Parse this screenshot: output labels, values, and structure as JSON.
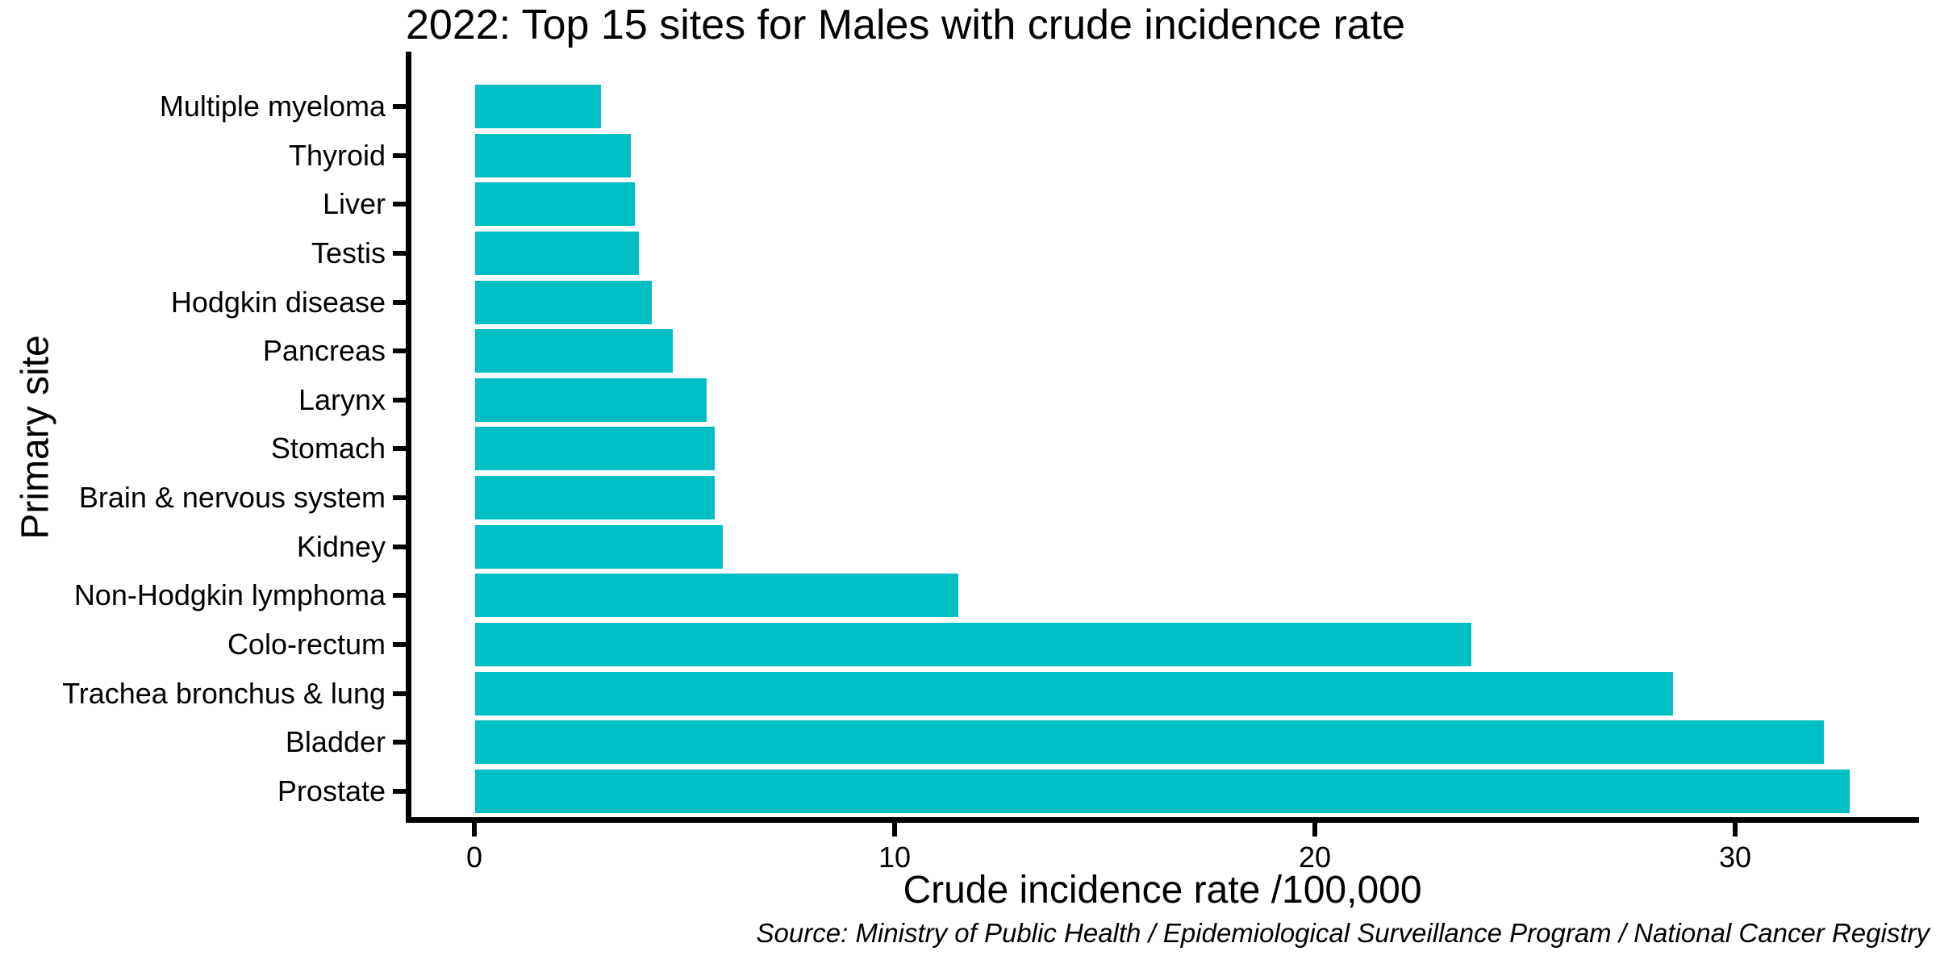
{
  "page": {
    "background": "#ffffff"
  },
  "chart_data": {
    "type": "bar",
    "orientation": "horizontal",
    "title": "2022: Top 15 sites for Males with crude incidence rate",
    "xlabel": "Crude incidence rate /100,000",
    "ylabel": "Primary site",
    "source_note": "Source: Ministry of Public Health / Epidemiological Surveillance Program / National Cancer Registry",
    "categories": [
      "Multiple myeloma",
      "Thyroid",
      "Liver",
      "Testis",
      "Hodgkin disease",
      "Pancreas",
      "Larynx",
      "Stomach",
      "Brain & nervous system",
      "Kidney",
      "Non-Hodgkin lymphoma",
      "Colo-rectum",
      "Trachea bronchus & lung",
      "Bladder",
      "Prostate"
    ],
    "values": [
      3.0,
      3.7,
      3.8,
      3.9,
      4.2,
      4.7,
      5.5,
      5.7,
      5.7,
      5.9,
      11.5,
      23.7,
      28.5,
      32.1,
      32.7
    ],
    "x_ticks": [
      0,
      10,
      20,
      30
    ],
    "xlim": [
      0,
      34.4
    ],
    "bar_color": "#00BFC4",
    "axis_color": "#000000",
    "grid": false,
    "legend": "none"
  }
}
